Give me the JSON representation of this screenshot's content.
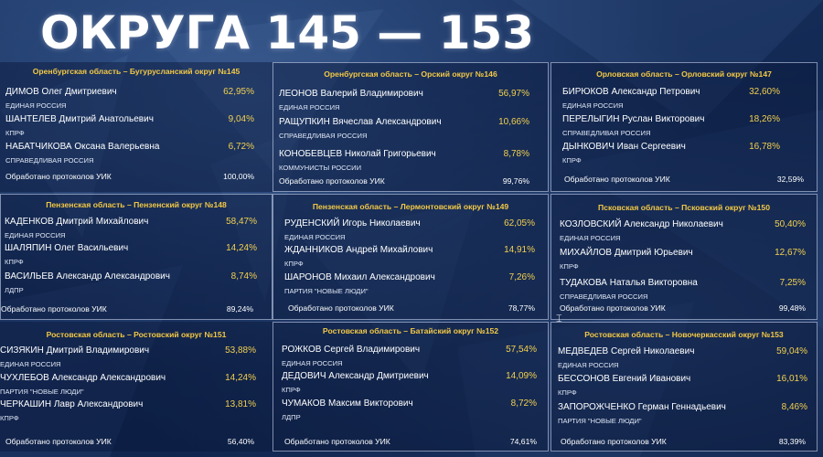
{
  "title": "ОКРУГА 145 — 153",
  "protocols_label": "Обработано протоколов УИК",
  "districts": [
    {
      "title": "Оренбургская область – Бугурусланский округ №145",
      "candidates": [
        {
          "name": "ДИМОВ Олег Дмитриевич",
          "party": "ЕДИНАЯ РОССИЯ",
          "percent": "62,95%"
        },
        {
          "name": "ШАНТЕЛЕВ Дмитрий Анатольевич",
          "party": "КПРФ",
          "percent": "9,04%"
        },
        {
          "name": "НАБАТЧИКОВА Оксана Валерьевна",
          "party": "СПРАВЕДЛИВАЯ РОССИЯ",
          "percent": "6,72%"
        }
      ],
      "protocols": "100,00%"
    },
    {
      "title": "Оренбургская область – Орский округ №146",
      "candidates": [
        {
          "name": "ЛЕОНОВ Валерий Владимирович",
          "party": "ЕДИНАЯ РОССИЯ",
          "percent": "56,97%"
        },
        {
          "name": "РАЩУПКИН Вячеслав Александрович",
          "party": "СПРАВЕДЛИВАЯ РОССИЯ",
          "percent": "10,66%"
        },
        {
          "name": "КОНОБЕВЦЕВ Николай Григорьевич",
          "party": "КОММУНИСТЫ РОССИИ",
          "percent": "8,78%"
        }
      ],
      "protocols": "99,76%"
    },
    {
      "title": "Орловская область – Орловский округ №147",
      "candidates": [
        {
          "name": "БИРЮКОВ Александр Петрович",
          "party": "ЕДИНАЯ РОССИЯ",
          "percent": "32,60%"
        },
        {
          "name": "ПЕРЕЛЫГИН Руслан Викторович",
          "party": "СПРАВЕДЛИВАЯ РОССИЯ",
          "percent": "18,26%"
        },
        {
          "name": "ДЫНКОВИЧ Иван Сергеевич",
          "party": "КПРФ",
          "percent": "16,78%"
        }
      ],
      "protocols": "32,59%"
    },
    {
      "title": "Пензенская область – Пензенский округ №148",
      "candidates": [
        {
          "name": "КАДЕНКОВ Дмитрий Михайлович",
          "party": "ЕДИНАЯ РОССИЯ",
          "percent": "58,47%"
        },
        {
          "name": "ШАЛЯПИН Олег Васильевич",
          "party": "КПРФ",
          "percent": "14,24%"
        },
        {
          "name": "ВАСИЛЬЕВ Александр Александрович",
          "party": "ЛДПР",
          "percent": "8,74%"
        }
      ],
      "protocols": "89,24%"
    },
    {
      "title": "Пензенская область – Лермонтовский округ №149",
      "candidates": [
        {
          "name": "РУДЕНСКИЙ Игорь Николаевич",
          "party": "ЕДИНАЯ РОССИЯ",
          "percent": "62,05%"
        },
        {
          "name": "ЖДАННИКОВ Андрей Михайлович",
          "party": "КПРФ",
          "percent": "14,91%"
        },
        {
          "name": "ШАРОНОВ Михаил Александрович",
          "party": "ПАРТИЯ \"НОВЫЕ ЛЮДИ\"",
          "percent": "7,26%"
        }
      ],
      "protocols": "78,77%"
    },
    {
      "title": "Псковская область – Псковский округ №150",
      "candidates": [
        {
          "name": "КОЗЛОВСКИЙ Александр Николаевич",
          "party": "ЕДИНАЯ РОССИЯ",
          "percent": "50,40%"
        },
        {
          "name": "МИХАЙЛОВ Дмитрий Юрьевич",
          "party": "КПРФ",
          "percent": "12,67%"
        },
        {
          "name": "ТУДАКОВА Наталья Викторовна",
          "party": "СПРАВЕДЛИВАЯ РОССИЯ",
          "percent": "7,25%"
        }
      ],
      "protocols": "99,48%"
    },
    {
      "title": "Ростовская область – Ростовский округ №151",
      "candidates": [
        {
          "name": "СИЗЯКИН Дмитрий Владимирович",
          "party": "ЕДИНАЯ РОССИЯ",
          "percent": "53,88%"
        },
        {
          "name": "ЧУХЛЕБОВ Александр Александрович",
          "party": "ПАРТИЯ \"НОВЫЕ ЛЮДИ\"",
          "percent": "14,24%"
        },
        {
          "name": "ЧЕРКАШИН Лавр Александрович",
          "party": "КПРФ",
          "percent": "13,81%"
        }
      ],
      "protocols": "56,40%"
    },
    {
      "title": "Ростовская область – Батайский округ №152",
      "candidates": [
        {
          "name": "РОЖКОВ Сергей Владимирович",
          "party": "ЕДИНАЯ РОССИЯ",
          "percent": "57,54%"
        },
        {
          "name": "ДЕДОВИЧ Александр Дмитриевич",
          "party": "КПРФ",
          "percent": "14,09%"
        },
        {
          "name": "ЧУМАКОВ Максим Викторович",
          "party": "ЛДПР",
          "percent": "8,72%"
        }
      ],
      "protocols": "74,61%"
    },
    {
      "title": "Ростовская область – Новочеркасский округ №153",
      "candidates": [
        {
          "name": "МЕДВЕДЕВ Сергей Николаевич",
          "party": "ЕДИНАЯ РОССИЯ",
          "percent": "59,04%"
        },
        {
          "name": "БЕССОНОВ Евгений Иванович",
          "party": "КПРФ",
          "percent": "16,01%"
        },
        {
          "name": "ЗАПОРОЖЧЕНКО Герман Геннадьевич",
          "party": "ПАРТИЯ \"НОВЫЕ ЛЮДИ\"",
          "percent": "8,46%"
        }
      ],
      "protocols": "83,39%"
    }
  ]
}
